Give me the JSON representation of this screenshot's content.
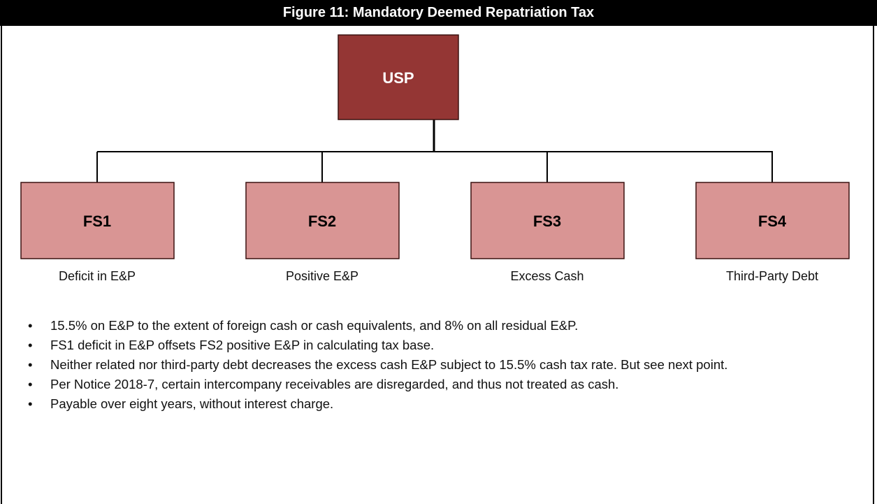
{
  "title": "Figure 11: Mandatory Deemed Repatriation Tax",
  "root": {
    "label": "USP"
  },
  "children": [
    {
      "label": "FS1",
      "caption": "Deficit in E&P"
    },
    {
      "label": "FS2",
      "caption": "Positive E&P"
    },
    {
      "label": "FS3",
      "caption": "Excess Cash"
    },
    {
      "label": "FS4",
      "caption": "Third-Party Debt"
    }
  ],
  "bullets": [
    "15.5% on E&P to the extent of foreign cash or cash equivalents, and 8% on all residual E&P.",
    "FS1 deficit in E&P offsets FS2 positive E&P in calculating tax base.",
    "Neither related nor third-party debt decreases the excess cash E&P subject to 15.5% cash tax rate. But see next point.",
    "Per Notice 2018-7, certain intercompany receivables are disregarded, and thus not treated as cash.",
    "Payable over eight years, without interest charge."
  ]
}
